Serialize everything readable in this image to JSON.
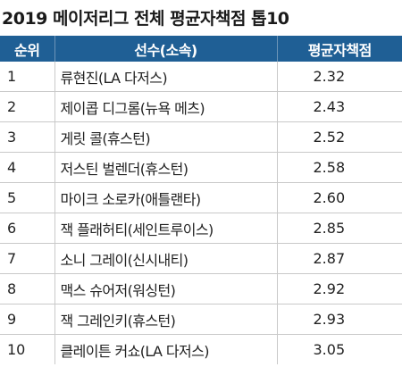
{
  "title": "2019 메이저리그 전체 평균자책점 톱10",
  "columns": {
    "rank": "순위",
    "player": "선수(소속)",
    "era": "평균자책점"
  },
  "rows": [
    {
      "rank": "1",
      "player": "류현진(LA 다저스)",
      "era": "2.32"
    },
    {
      "rank": "2",
      "player": "제이콥 디그롬(뉴욕 메츠)",
      "era": "2.43"
    },
    {
      "rank": "3",
      "player": "게릿 콜(휴스턴)",
      "era": "2.52"
    },
    {
      "rank": "4",
      "player": "저스틴 벌렌더(휴스턴)",
      "era": "2.58"
    },
    {
      "rank": "5",
      "player": "마이크 소로카(애틀랜타)",
      "era": "2.60"
    },
    {
      "rank": "6",
      "player": "잭 플래허티(세인트루이스)",
      "era": "2.85"
    },
    {
      "rank": "7",
      "player": "소니 그레이(신시내티)",
      "era": "2.87"
    },
    {
      "rank": "8",
      "player": "맥스 슈어저(워싱턴)",
      "era": "2.92"
    },
    {
      "rank": "9",
      "player": "잭 그레인키(휴스턴)",
      "era": "2.93"
    },
    {
      "rank": "10",
      "player": "클레이튼 커쇼(LA 다저스)",
      "era": "3.05"
    }
  ]
}
